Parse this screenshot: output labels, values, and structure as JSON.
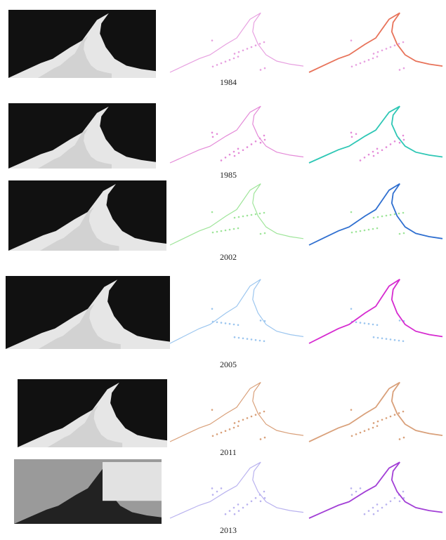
{
  "figure": {
    "rows": [
      {
        "label": "1984"
      },
      {
        "label": "1985"
      },
      {
        "label": "2002"
      },
      {
        "label": "2005"
      },
      {
        "label": "2011"
      },
      {
        "label": "2013"
      }
    ]
  }
}
